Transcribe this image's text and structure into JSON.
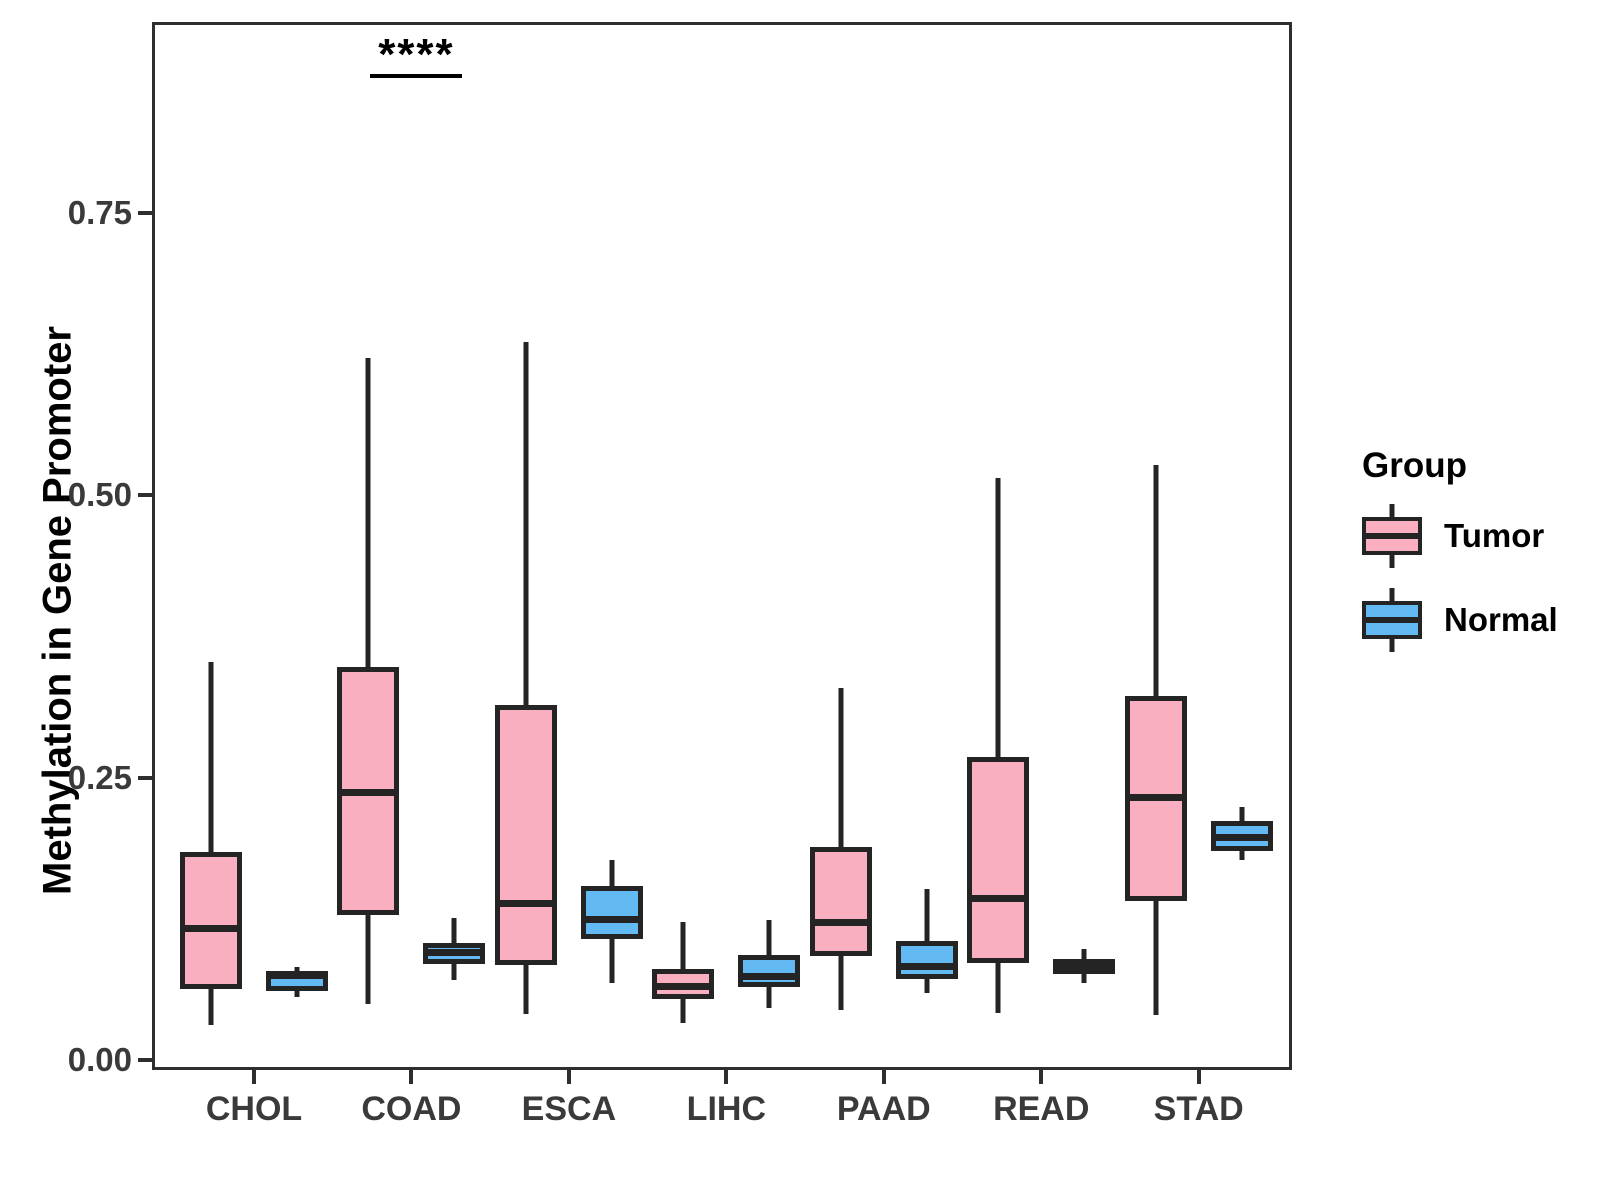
{
  "figure": {
    "y_axis_title": "Methylation in Gene Promoter",
    "y_tick_labels": [
      "0.00",
      "0.25",
      "0.50",
      "0.75"
    ],
    "x_tick_labels": [
      "CHOL",
      "COAD",
      "ESCA",
      "LIHC",
      "PAAD",
      "READ",
      "STAD"
    ],
    "annotation_text": "****",
    "legend": {
      "title": "Group",
      "items": [
        {
          "label": "Tumor",
          "color": "#F9AFC0"
        },
        {
          "label": "Normal",
          "color": "#63B9F2"
        }
      ]
    }
  },
  "chart_data": {
    "type": "boxplot",
    "title": "",
    "xlabel": "",
    "ylabel": "Methylation in Gene Promoter",
    "ylim": [
      -0.01,
      0.92
    ],
    "yticks": [
      0.0,
      0.25,
      0.5,
      0.75
    ],
    "grid": false,
    "legend_position": "right",
    "categories": [
      "CHOL",
      "COAD",
      "ESCA",
      "LIHC",
      "PAAD",
      "READ",
      "STAD"
    ],
    "series": [
      {
        "name": "Tumor",
        "fill_color": "#F9AFC0",
        "line_color": "#242424",
        "boxes": [
          {
            "category": "CHOL",
            "whisker_low": 0.031,
            "q1": 0.063,
            "median": 0.116,
            "q3": 0.184,
            "whisker_high": 0.352
          },
          {
            "category": "COAD",
            "whisker_low": 0.05,
            "q1": 0.128,
            "median": 0.237,
            "q3": 0.348,
            "whisker_high": 0.622
          },
          {
            "category": "ESCA",
            "whisker_low": 0.041,
            "q1": 0.084,
            "median": 0.139,
            "q3": 0.314,
            "whisker_high": 0.636
          },
          {
            "category": "LIHC",
            "whisker_low": 0.033,
            "q1": 0.054,
            "median": 0.065,
            "q3": 0.081,
            "whisker_high": 0.122
          },
          {
            "category": "PAAD",
            "whisker_low": 0.044,
            "q1": 0.092,
            "median": 0.122,
            "q3": 0.189,
            "whisker_high": 0.329
          },
          {
            "category": "READ",
            "whisker_low": 0.042,
            "q1": 0.086,
            "median": 0.143,
            "q3": 0.268,
            "whisker_high": 0.515
          },
          {
            "category": "STAD",
            "whisker_low": 0.04,
            "q1": 0.141,
            "median": 0.232,
            "q3": 0.322,
            "whisker_high": 0.527
          }
        ]
      },
      {
        "name": "Normal",
        "fill_color": "#63B9F2",
        "line_color": "#242424",
        "boxes": [
          {
            "category": "CHOL",
            "whisker_low": 0.056,
            "q1": 0.061,
            "median": 0.075,
            "q3": 0.079,
            "whisker_high": 0.082
          },
          {
            "category": "COAD",
            "whisker_low": 0.071,
            "q1": 0.085,
            "median": 0.095,
            "q3": 0.104,
            "whisker_high": 0.126
          },
          {
            "category": "ESCA",
            "whisker_low": 0.068,
            "q1": 0.107,
            "median": 0.124,
            "q3": 0.154,
            "whisker_high": 0.177
          },
          {
            "category": "LIHC",
            "whisker_low": 0.046,
            "q1": 0.065,
            "median": 0.074,
            "q3": 0.093,
            "whisker_high": 0.124
          },
          {
            "category": "PAAD",
            "whisker_low": 0.059,
            "q1": 0.072,
            "median": 0.083,
            "q3": 0.105,
            "whisker_high": 0.151
          },
          {
            "category": "READ",
            "whisker_low": 0.068,
            "q1": 0.076,
            "median": 0.083,
            "q3": 0.089,
            "whisker_high": 0.098
          },
          {
            "category": "STAD",
            "whisker_low": 0.177,
            "q1": 0.185,
            "median": 0.197,
            "q3": 0.212,
            "whisker_high": 0.224
          }
        ]
      }
    ],
    "significance": [
      {
        "category": "COAD",
        "label": "****"
      }
    ]
  }
}
